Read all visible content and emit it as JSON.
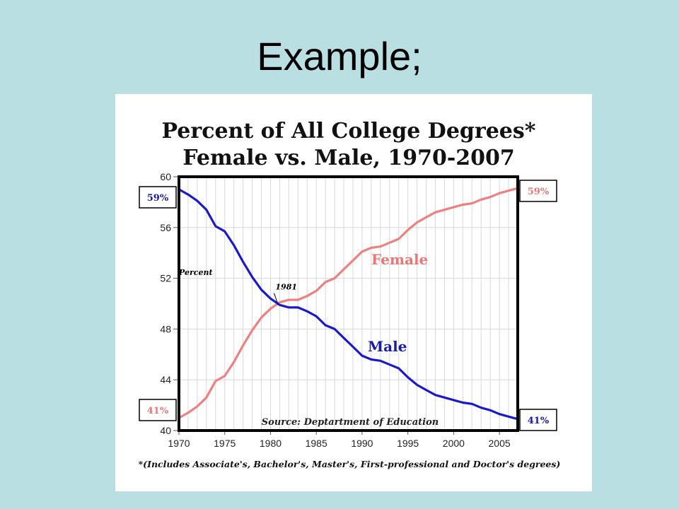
{
  "slide": {
    "title": "Example;"
  },
  "chart_data": {
    "type": "line",
    "title": "Percent of All College Degrees*",
    "subtitle": "Female vs. Male, 1970-2007",
    "ylabel": "Percent",
    "xlabel": "",
    "xlim": [
      1970,
      2007
    ],
    "ylim": [
      40,
      60
    ],
    "x_ticks": [
      1970,
      1975,
      1980,
      1985,
      1990,
      1995,
      2000,
      2005
    ],
    "y_ticks": [
      40,
      44,
      48,
      52,
      56,
      60
    ],
    "grid": true,
    "series": [
      {
        "name": "Female",
        "color": "#f08080",
        "label_color": "#e87878",
        "x": [
          1970,
          1971,
          1972,
          1973,
          1974,
          1975,
          1976,
          1977,
          1978,
          1979,
          1980,
          1981,
          1982,
          1983,
          1984,
          1985,
          1986,
          1987,
          1988,
          1989,
          1990,
          1991,
          1992,
          1993,
          1994,
          1995,
          1996,
          1997,
          1998,
          1999,
          2000,
          2001,
          2002,
          2003,
          2004,
          2005,
          2006,
          2007
        ],
        "values": [
          41.0,
          41.4,
          41.9,
          42.6,
          43.9,
          44.3,
          45.4,
          46.7,
          47.9,
          48.9,
          49.6,
          50.1,
          50.3,
          50.3,
          50.6,
          51.0,
          51.7,
          52.0,
          52.7,
          53.4,
          54.1,
          54.4,
          54.5,
          54.8,
          55.1,
          55.8,
          56.4,
          56.8,
          57.2,
          57.4,
          57.6,
          57.8,
          57.9,
          58.2,
          58.4,
          58.7,
          58.9,
          59.1
        ]
      },
      {
        "name": "Male",
        "color": "#1a1acc",
        "label_color": "#1a1aa8",
        "x": [
          1970,
          1971,
          1972,
          1973,
          1974,
          1975,
          1976,
          1977,
          1978,
          1979,
          1980,
          1981,
          1982,
          1983,
          1984,
          1985,
          1986,
          1987,
          1988,
          1989,
          1990,
          1991,
          1992,
          1993,
          1994,
          1995,
          1996,
          1997,
          1998,
          1999,
          2000,
          2001,
          2002,
          2003,
          2004,
          2005,
          2006,
          2007
        ],
        "values": [
          59.0,
          58.6,
          58.1,
          57.4,
          56.1,
          55.7,
          54.6,
          53.3,
          52.1,
          51.1,
          50.4,
          49.9,
          49.7,
          49.7,
          49.4,
          49.0,
          48.3,
          48.0,
          47.3,
          46.6,
          45.9,
          45.6,
          45.5,
          45.2,
          44.9,
          44.2,
          43.6,
          43.2,
          42.8,
          42.6,
          42.4,
          42.2,
          42.1,
          41.8,
          41.6,
          41.3,
          41.1,
          40.9
        ]
      }
    ],
    "annotations": [
      {
        "text": "1981",
        "x": 1981,
        "y": 50.5
      },
      {
        "text": "Source: Deptartment of Education",
        "position": "bottom-center"
      }
    ],
    "callouts": [
      {
        "text": "59%",
        "side": "left",
        "color": "#1a1aa8",
        "value": 59
      },
      {
        "text": "41%",
        "side": "left",
        "color": "#e87878",
        "value": 41
      },
      {
        "text": "59%",
        "side": "right",
        "color": "#e87878",
        "value": 59
      },
      {
        "text": "41%",
        "side": "right",
        "color": "#1a1aa8",
        "value": 41
      }
    ],
    "footnote": "*(Includes Associate's, Bachelor's, Master's, First-professional and Doctor's degrees)"
  }
}
